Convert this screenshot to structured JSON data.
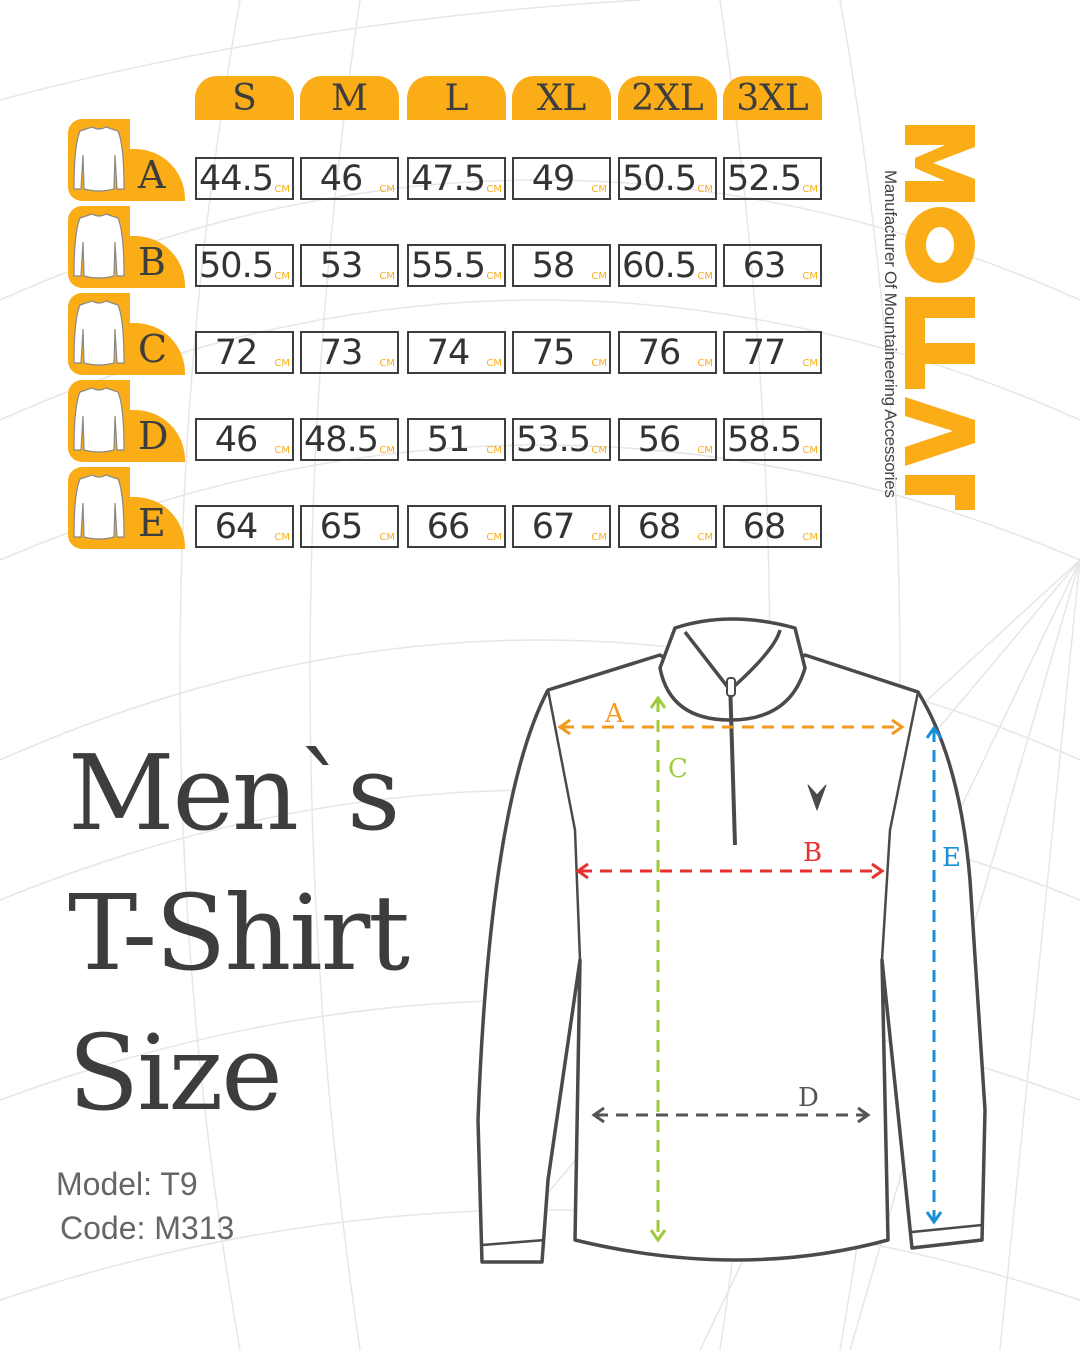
{
  "colors": {
    "accent": "#fbad18",
    "text": "#3d3d3d",
    "measure_a": "#f39a1e",
    "measure_b": "#e8312e",
    "measure_c": "#9dcb3b",
    "measure_d": "#555555",
    "measure_e": "#1a8fd6"
  },
  "sizes": [
    "S",
    "M",
    "L",
    "XL",
    "2XL",
    "3XL"
  ],
  "unit": "CM",
  "rows": [
    {
      "label": "A",
      "values": [
        "44.5",
        "46",
        "47.5",
        "49",
        "50.5",
        "52.5"
      ]
    },
    {
      "label": "B",
      "values": [
        "50.5",
        "53",
        "55.5",
        "58",
        "60.5",
        "63"
      ]
    },
    {
      "label": "C",
      "values": [
        "72",
        "73",
        "74",
        "75",
        "76",
        "77"
      ]
    },
    {
      "label": "D",
      "values": [
        "46",
        "48.5",
        "51",
        "53.5",
        "56",
        "58.5"
      ]
    },
    {
      "label": "E",
      "values": [
        "64",
        "65",
        "66",
        "67",
        "68",
        "68"
      ]
    }
  ],
  "brand": {
    "logo": "MOTAL",
    "tagline": "Manufacturer Of Mountaineering Accessories"
  },
  "title": {
    "line1": "Men`s",
    "line2": "T-Shirt",
    "line3": "Size"
  },
  "model": "Model: T9",
  "code": "Code: M313",
  "diagram_labels": {
    "a": "A",
    "b": "B",
    "c": "C",
    "d": "D",
    "e": "E"
  }
}
